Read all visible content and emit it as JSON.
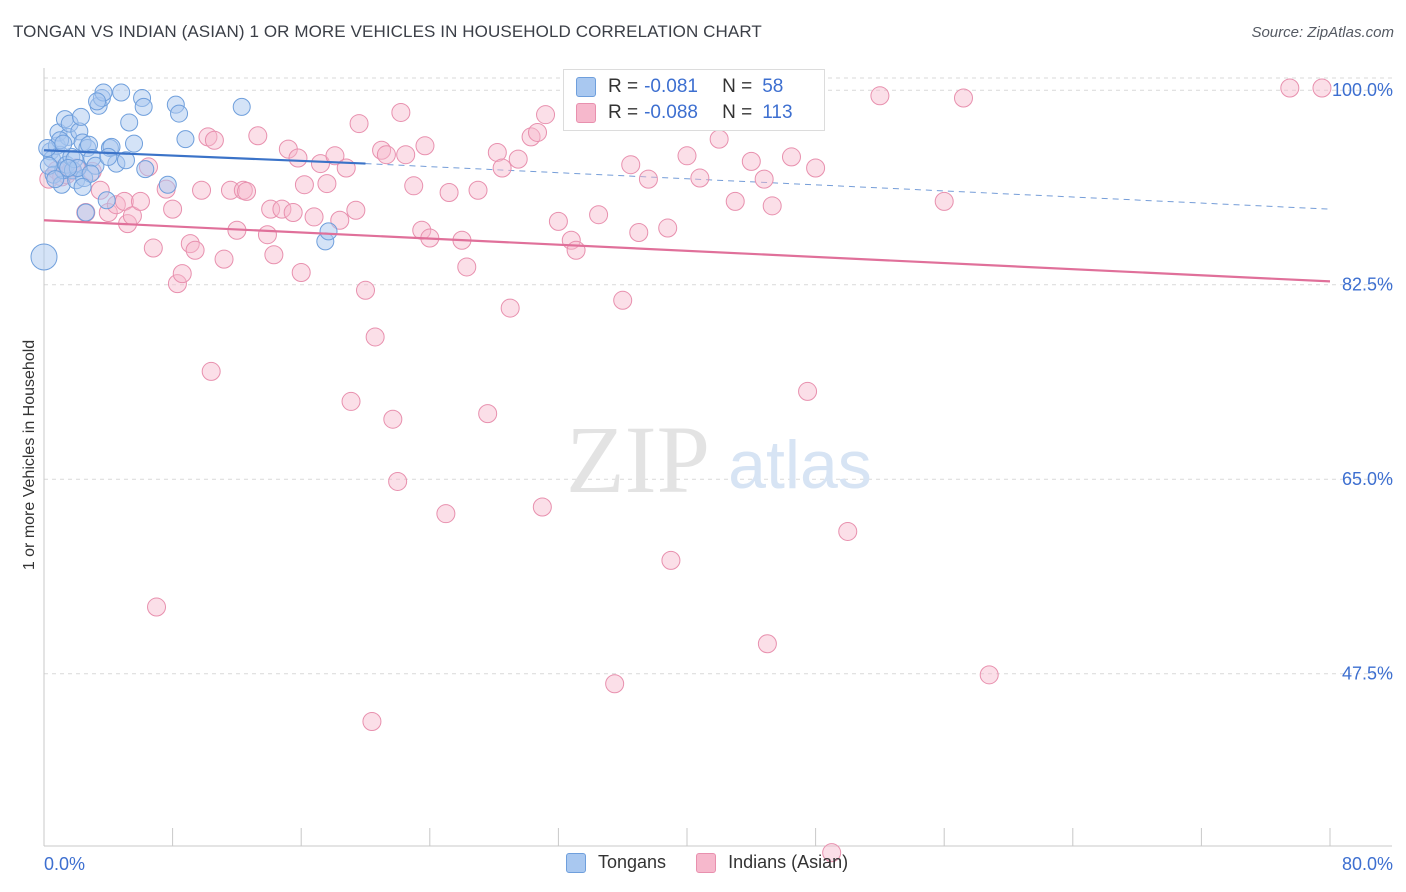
{
  "title": "TONGAN VS INDIAN (ASIAN) 1 OR MORE VEHICLES IN HOUSEHOLD CORRELATION CHART",
  "source": "Source: ZipAtlas.com",
  "watermark": {
    "zip": "ZIP",
    "atlas": "atlas"
  },
  "legend": {
    "rows": [
      {
        "r_label": "R =",
        "r_value": "-0.081",
        "n_label": "N =",
        "n_value": "58"
      },
      {
        "r_label": "R =",
        "r_value": "-0.088",
        "n_label": "N =",
        "n_value": "113"
      }
    ]
  },
  "bottom_legend": {
    "tongans": "Tongans",
    "indians": "Indians (Asian)"
  },
  "colors": {
    "tongan_fill": "#a9c8f0",
    "tongan_stroke": "#6f9fdc",
    "tongan_line": "#3b73c8",
    "indian_fill": "#f6b8cc",
    "indian_stroke": "#e890ae",
    "indian_line": "#e0709a",
    "tick_label": "#3d6fd0",
    "grid": "#d9d9d9"
  },
  "chart_data": {
    "type": "scatter",
    "ylabel": "1 or more Vehicles in Household",
    "xlim": [
      0,
      80
    ],
    "ylim": [
      32,
      102
    ],
    "x_tick_labels": [
      {
        "value": 0,
        "label": "0.0%"
      },
      {
        "value": 80,
        "label": "80.0%"
      }
    ],
    "y_tick_labels": [
      {
        "value": 100,
        "label": "100.0%"
      },
      {
        "value": 82.5,
        "label": "82.5%"
      },
      {
        "value": 65,
        "label": "65.0%"
      },
      {
        "value": 47.5,
        "label": "47.5%"
      }
    ],
    "series": [
      {
        "name": "Tongans",
        "R": -0.081,
        "N": 58,
        "trend": {
          "x0": 0,
          "y0": 94.6,
          "x1": 20,
          "y1": 93.4,
          "x_end": 80,
          "y_end": 89.3
        },
        "points": [
          [
            0.0,
            85.0
          ],
          [
            0.4,
            94.5
          ],
          [
            0.5,
            93.8
          ],
          [
            0.6,
            92.4
          ],
          [
            0.8,
            95.0
          ],
          [
            0.9,
            96.2
          ],
          [
            1.0,
            94.2
          ],
          [
            1.1,
            91.5
          ],
          [
            1.2,
            92.8
          ],
          [
            1.3,
            97.4
          ],
          [
            1.4,
            93.3
          ],
          [
            1.5,
            95.8
          ],
          [
            1.6,
            97.0
          ],
          [
            1.7,
            94.0
          ],
          [
            1.8,
            92.8
          ],
          [
            1.9,
            93.8
          ],
          [
            2.0,
            91.9
          ],
          [
            2.2,
            96.3
          ],
          [
            2.3,
            97.6
          ],
          [
            2.4,
            95.3
          ],
          [
            2.5,
            92.1
          ],
          [
            2.6,
            89.0
          ],
          [
            2.7,
            94.8
          ],
          [
            2.8,
            95.1
          ],
          [
            3.0,
            93.9
          ],
          [
            3.2,
            93.2
          ],
          [
            3.4,
            98.6
          ],
          [
            3.6,
            99.3
          ],
          [
            3.7,
            99.8
          ],
          [
            3.9,
            90.1
          ],
          [
            4.1,
            94.8
          ],
          [
            4.2,
            94.9
          ],
          [
            4.5,
            93.4
          ],
          [
            4.8,
            99.8
          ],
          [
            5.1,
            93.7
          ],
          [
            5.3,
            97.1
          ],
          [
            5.6,
            95.2
          ],
          [
            6.1,
            99.3
          ],
          [
            6.2,
            98.5
          ],
          [
            6.3,
            92.9
          ],
          [
            7.7,
            91.5
          ],
          [
            8.2,
            98.7
          ],
          [
            8.4,
            97.9
          ],
          [
            8.8,
            95.6
          ],
          [
            12.3,
            98.5
          ],
          [
            17.5,
            86.4
          ],
          [
            17.7,
            87.3
          ],
          [
            0.3,
            93.2
          ],
          [
            1.0,
            95.5
          ],
          [
            2.1,
            93.0
          ],
          [
            3.3,
            99.0
          ],
          [
            0.7,
            92.0
          ],
          [
            1.5,
            93.0
          ],
          [
            2.9,
            92.5
          ],
          [
            0.2,
            94.8
          ],
          [
            1.2,
            95.2
          ],
          [
            2.4,
            91.3
          ],
          [
            4.0,
            94.0
          ]
        ]
      },
      {
        "name": "Indians (Asian)",
        "R": -0.088,
        "N": 113,
        "trend": {
          "x0": 0,
          "y0": 88.3,
          "x1": 80,
          "y1": 82.8
        },
        "points": [
          [
            0.3,
            92.0
          ],
          [
            0.8,
            92.8
          ],
          [
            1.1,
            92.2
          ],
          [
            1.4,
            92.4
          ],
          [
            1.7,
            92.8
          ],
          [
            2.0,
            93.0
          ],
          [
            2.6,
            89.0
          ],
          [
            3.0,
            92.7
          ],
          [
            3.5,
            91.0
          ],
          [
            4.0,
            89.0
          ],
          [
            4.5,
            89.7
          ],
          [
            5.0,
            90.0
          ],
          [
            5.2,
            88.0
          ],
          [
            5.5,
            88.7
          ],
          [
            6.0,
            90.0
          ],
          [
            6.5,
            93.1
          ],
          [
            6.8,
            85.8
          ],
          [
            7.0,
            53.5
          ],
          [
            7.6,
            91.1
          ],
          [
            8.0,
            89.3
          ],
          [
            8.3,
            82.6
          ],
          [
            8.6,
            83.5
          ],
          [
            9.1,
            86.2
          ],
          [
            9.4,
            85.6
          ],
          [
            9.8,
            91.0
          ],
          [
            10.2,
            95.8
          ],
          [
            10.4,
            74.7
          ],
          [
            10.6,
            95.5
          ],
          [
            11.2,
            84.8
          ],
          [
            11.6,
            91.0
          ],
          [
            12.0,
            87.4
          ],
          [
            12.4,
            91.0
          ],
          [
            12.6,
            90.9
          ],
          [
            13.3,
            95.9
          ],
          [
            13.9,
            87.0
          ],
          [
            14.1,
            89.3
          ],
          [
            14.3,
            85.2
          ],
          [
            14.8,
            89.3
          ],
          [
            15.2,
            94.7
          ],
          [
            15.5,
            89.0
          ],
          [
            15.8,
            93.9
          ],
          [
            16.0,
            83.6
          ],
          [
            16.2,
            91.5
          ],
          [
            16.8,
            88.6
          ],
          [
            17.2,
            93.4
          ],
          [
            17.6,
            91.6
          ],
          [
            18.1,
            94.1
          ],
          [
            18.4,
            88.3
          ],
          [
            18.8,
            93.0
          ],
          [
            19.1,
            72.0
          ],
          [
            19.4,
            89.2
          ],
          [
            19.6,
            97.0
          ],
          [
            20.0,
            82.0
          ],
          [
            20.4,
            43.2
          ],
          [
            20.6,
            77.8
          ],
          [
            21.0,
            94.6
          ],
          [
            21.3,
            94.2
          ],
          [
            21.7,
            70.4
          ],
          [
            22.0,
            64.8
          ],
          [
            22.2,
            98.0
          ],
          [
            22.5,
            94.2
          ],
          [
            23.0,
            91.4
          ],
          [
            23.5,
            87.4
          ],
          [
            23.7,
            95.0
          ],
          [
            24.0,
            86.7
          ],
          [
            25.0,
            61.9
          ],
          [
            25.2,
            90.8
          ],
          [
            26.0,
            86.5
          ],
          [
            26.3,
            84.1
          ],
          [
            27.0,
            91.0
          ],
          [
            27.6,
            70.9
          ],
          [
            28.2,
            94.4
          ],
          [
            28.5,
            93.0
          ],
          [
            29.0,
            80.4
          ],
          [
            29.5,
            93.8
          ],
          [
            30.3,
            95.8
          ],
          [
            30.7,
            96.2
          ],
          [
            31.0,
            62.5
          ],
          [
            31.2,
            97.8
          ],
          [
            32.0,
            88.2
          ],
          [
            32.8,
            86.5
          ],
          [
            33.1,
            85.6
          ],
          [
            33.5,
            99.8
          ],
          [
            34.0,
            99.5
          ],
          [
            34.5,
            88.8
          ],
          [
            35.5,
            46.6
          ],
          [
            36.0,
            81.1
          ],
          [
            36.5,
            93.3
          ],
          [
            37.0,
            87.2
          ],
          [
            37.6,
            92.0
          ],
          [
            38.2,
            97.6
          ],
          [
            38.8,
            87.6
          ],
          [
            39.0,
            57.7
          ],
          [
            40.0,
            94.1
          ],
          [
            40.8,
            92.1
          ],
          [
            42.0,
            95.6
          ],
          [
            43.0,
            90.0
          ],
          [
            43.5,
            98.2
          ],
          [
            44.0,
            93.6
          ],
          [
            44.8,
            92.0
          ],
          [
            45.0,
            50.2
          ],
          [
            45.3,
            89.6
          ],
          [
            46.5,
            94.0
          ],
          [
            47.5,
            72.9
          ],
          [
            48.0,
            93.0
          ],
          [
            49.0,
            31.4
          ],
          [
            50.0,
            60.3
          ],
          [
            52.0,
            99.5
          ],
          [
            56.0,
            90.0
          ],
          [
            58.8,
            47.4
          ],
          [
            77.5,
            100.2
          ],
          [
            79.5,
            100.2
          ],
          [
            57.2,
            99.3
          ]
        ]
      }
    ]
  }
}
